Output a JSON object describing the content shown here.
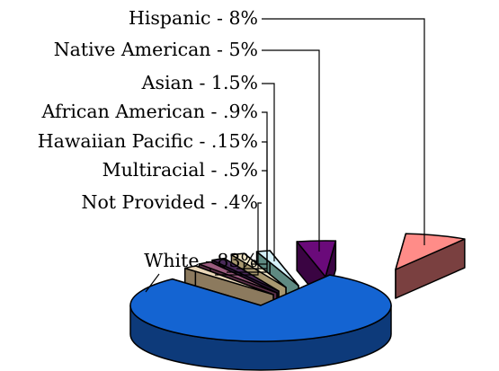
{
  "chart_data": {
    "type": "pie",
    "style": "3d-exploded",
    "title": "",
    "slices": [
      {
        "label": "White - 83%",
        "value": 83,
        "color_top": "#1464d2",
        "color_side": "#0d3a7a"
      },
      {
        "label": "Not Provided - .4%",
        "value": 0.4,
        "color_top": "#ead7b8",
        "color_side": "#8c7a5e"
      },
      {
        "label": "Multiracial - .5%",
        "value": 0.5,
        "color_top": "#9a5b7e",
        "color_side": "#5a2f48"
      },
      {
        "label": "Hawaiian Pacific - .15%",
        "value": 0.15,
        "color_top": "#4a2a5a",
        "color_side": "#2a1436"
      },
      {
        "label": "African American - .9%",
        "value": 0.9,
        "color_top": "#f5eacb",
        "color_side": "#a89870"
      },
      {
        "label": "Asian - 1.5%",
        "value": 1.5,
        "color_top": "#d4f0f8",
        "color_side": "#5f8a82"
      },
      {
        "label": "Native American - 5%",
        "value": 5,
        "color_top": "#6a0a7a",
        "color_side": "#3a0442"
      },
      {
        "label": "Hispanic - 8%",
        "value": 8,
        "color_top": "#ff8c88",
        "color_side": "#7a4040"
      }
    ],
    "legend": "none"
  }
}
